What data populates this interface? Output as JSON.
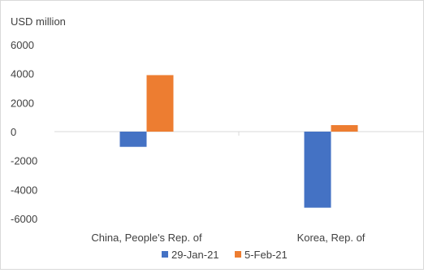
{
  "chart_data": {
    "type": "bar",
    "title": "",
    "ylabel": "USD million",
    "xlabel": "",
    "categories": [
      "China, People's Rep. of",
      "Korea, Rep. of"
    ],
    "series": [
      {
        "name": "29-Jan-21",
        "values": [
          -1050,
          -5250
        ],
        "color": "#4472C4"
      },
      {
        "name": "5-Feb-21",
        "values": [
          3900,
          450
        ],
        "color": "#ED7D31"
      }
    ],
    "ylim": [
      -6000,
      6000
    ],
    "yticks": [
      "6000",
      "4000",
      "2000",
      "0",
      "-2000",
      "-4000",
      "-6000"
    ],
    "grid": false,
    "legend": "bottom"
  }
}
